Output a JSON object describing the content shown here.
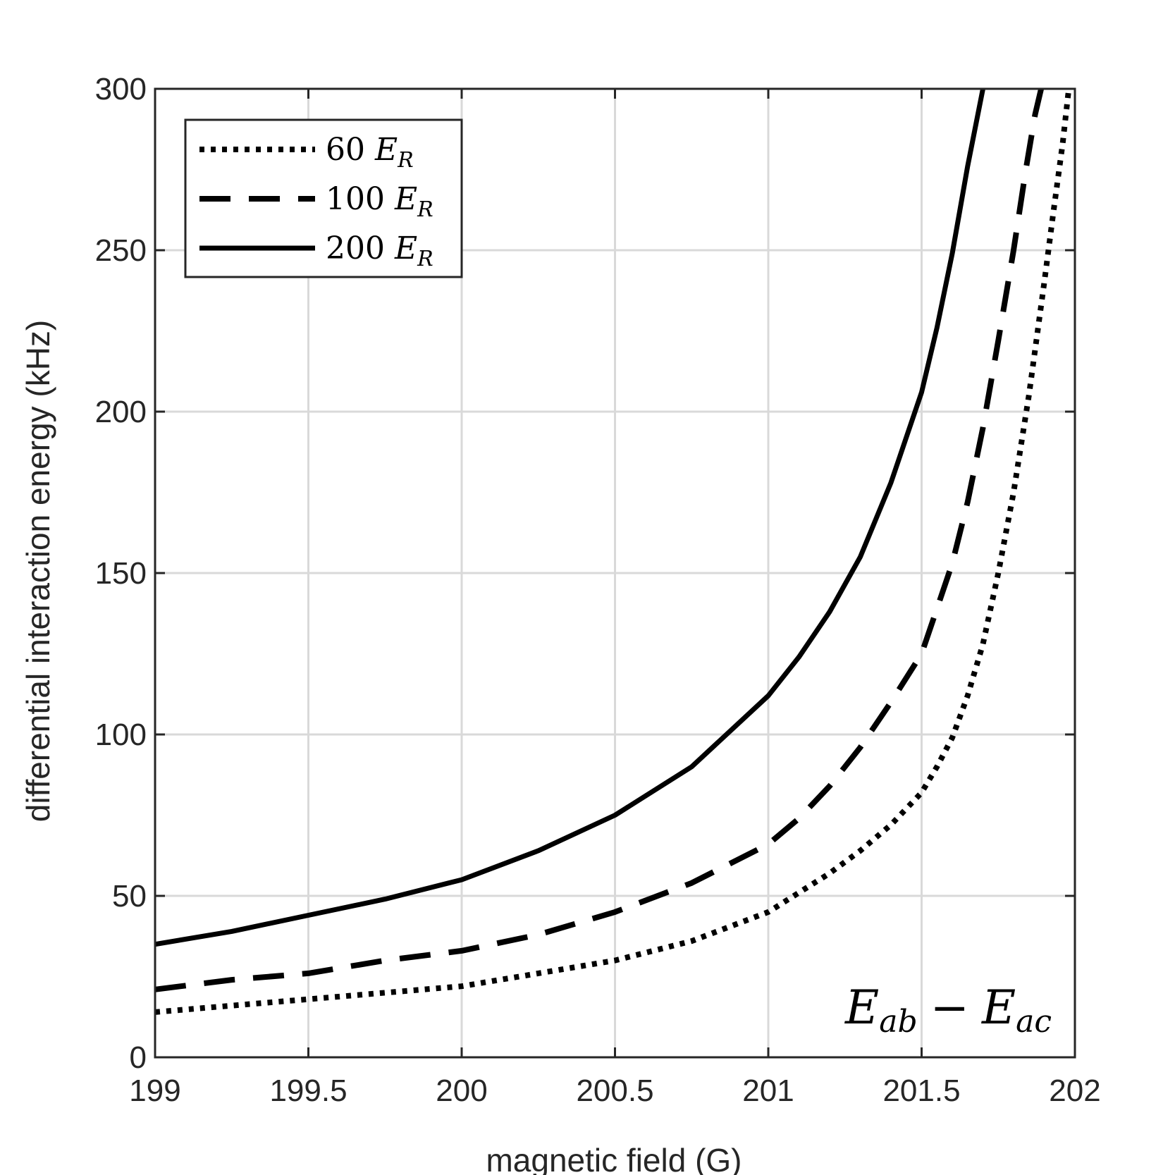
{
  "chart_data": {
    "type": "line",
    "xlabel": "magnetic field (G)",
    "ylabel": "differential interaction energy (kHz)",
    "xlim": [
      199,
      202
    ],
    "ylim": [
      0,
      300
    ],
    "x_ticks": [
      199,
      199.5,
      200,
      200.5,
      201,
      201.5,
      202
    ],
    "x_tick_labels": [
      "199",
      "199.5",
      "200",
      "200.5",
      "201",
      "201.5",
      "202"
    ],
    "y_ticks": [
      0,
      50,
      100,
      150,
      200,
      250,
      300
    ],
    "y_tick_labels": [
      "0",
      "50",
      "100",
      "150",
      "200",
      "250",
      "300"
    ],
    "grid": true,
    "legend_position": "top-left",
    "annotation": {
      "main": "E",
      "sub1": "ab",
      "minus": "−",
      "main2": "E",
      "sub2": "ac",
      "position": "bottom-right"
    },
    "series": [
      {
        "name": "60 E_R",
        "legend_num": "60",
        "legend_sym": "E",
        "legend_sub": "R",
        "style": "dotted",
        "color": "#000000",
        "x": [
          199.0,
          199.25,
          199.5,
          199.75,
          200.0,
          200.25,
          200.5,
          200.75,
          201.0,
          201.1,
          201.2,
          201.3,
          201.4,
          201.5,
          201.55,
          201.6,
          201.65,
          201.7,
          201.75,
          201.8,
          201.85,
          201.9,
          201.93,
          201.96,
          201.98
        ],
        "y": [
          14,
          16,
          18,
          20,
          22,
          26,
          30,
          36,
          45,
          51,
          57,
          64,
          72,
          82,
          90,
          99,
          112,
          128,
          150,
          175,
          205,
          240,
          262,
          283,
          300
        ]
      },
      {
        "name": "100 E_R",
        "legend_num": "100",
        "legend_sym": "E",
        "legend_sub": "R",
        "style": "dashed",
        "color": "#000000",
        "x": [
          199.0,
          199.25,
          199.5,
          199.75,
          200.0,
          200.25,
          200.5,
          200.75,
          201.0,
          201.1,
          201.2,
          201.3,
          201.4,
          201.5,
          201.55,
          201.6,
          201.65,
          201.7,
          201.75,
          201.8,
          201.84,
          201.87,
          201.89
        ],
        "y": [
          21,
          24,
          26,
          30,
          33,
          38,
          45,
          54,
          66,
          74,
          84,
          96,
          110,
          125,
          139,
          153,
          172,
          195,
          222,
          250,
          275,
          292,
          300
        ]
      },
      {
        "name": "200 E_R",
        "legend_num": "200",
        "legend_sym": "E",
        "legend_sub": "R",
        "style": "solid",
        "color": "#000000",
        "x": [
          199.0,
          199.25,
          199.5,
          199.75,
          200.0,
          200.25,
          200.5,
          200.75,
          201.0,
          201.1,
          201.2,
          201.3,
          201.4,
          201.5,
          201.55,
          201.6,
          201.65,
          201.7
        ],
        "y": [
          35,
          39,
          44,
          49,
          55,
          64,
          75,
          90,
          112,
          124,
          138,
          155,
          178,
          206,
          226,
          249,
          276,
          300
        ]
      }
    ]
  }
}
